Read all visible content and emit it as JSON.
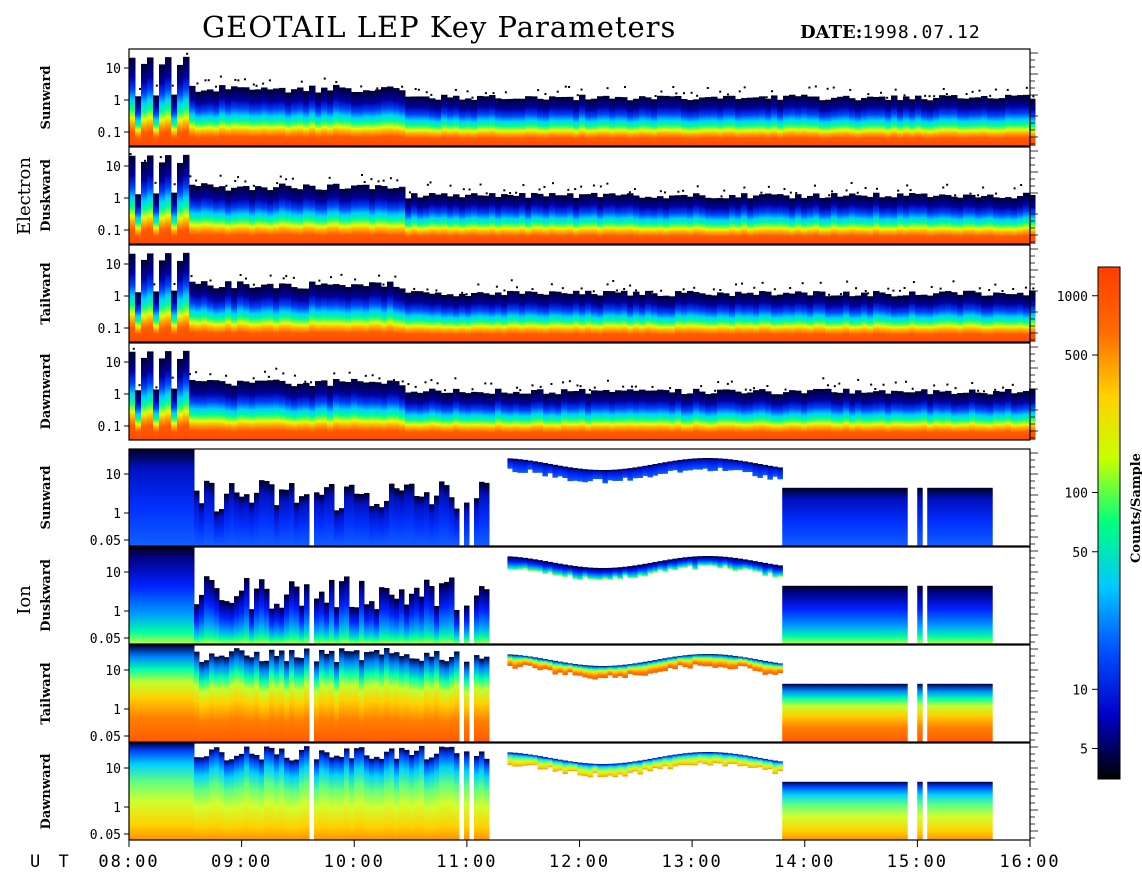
{
  "title": "GEOTAIL LEP Key Parameters",
  "date_label": "DATE:",
  "date_value": "1998.07.12",
  "colorbar": {
    "label": "Counts/Sample",
    "ticks": [
      "1000",
      "500",
      "100",
      "50",
      "10",
      "5"
    ],
    "colormap": [
      "#000000",
      "#0000c8",
      "#0050ff",
      "#00c8ff",
      "#00ff80",
      "#c8ff00",
      "#ffd000",
      "#ff6a00",
      "#ff3c00"
    ]
  },
  "chart_data": {
    "type": "heatmap",
    "title": "GEOTAIL LEP Key Parameters",
    "date": "1998.07.12",
    "x_axis": {
      "label": "U T",
      "range": [
        "08:00",
        "16:00"
      ],
      "ticks": [
        "08:00",
        "09:00",
        "10:00",
        "11:00",
        "12:00",
        "13:00",
        "14:00",
        "15:00",
        "16:00"
      ]
    },
    "color_scale": {
      "label": "Counts/Sample",
      "scale": "log",
      "ticks": [
        5,
        10,
        50,
        100,
        500,
        1000
      ]
    },
    "groups": [
      {
        "name": "Electron",
        "panels": [
          {
            "direction": "Sunward",
            "y_ticks": [
              "10",
              "1",
              "0.1"
            ]
          },
          {
            "direction": "Duskward",
            "y_ticks": [
              "10",
              "1",
              "0.1"
            ]
          },
          {
            "direction": "Tailward",
            "y_ticks": [
              "10",
              "1",
              "0.1"
            ]
          },
          {
            "direction": "Dawnward",
            "y_ticks": [
              "10",
              "1",
              "0.1"
            ]
          }
        ]
      },
      {
        "name": "Ion",
        "panels": [
          {
            "direction": "Sunward",
            "y_ticks": [
              "10",
              "1",
              "0.05"
            ]
          },
          {
            "direction": "Duskward",
            "y_ticks": [
              "10",
              "1",
              "0.05"
            ]
          },
          {
            "direction": "Tailward",
            "y_ticks": [
              "10",
              "1",
              "0.05"
            ]
          },
          {
            "direction": "Dawnward",
            "y_ticks": [
              "10",
              "1",
              "0.05"
            ]
          }
        ]
      }
    ]
  }
}
